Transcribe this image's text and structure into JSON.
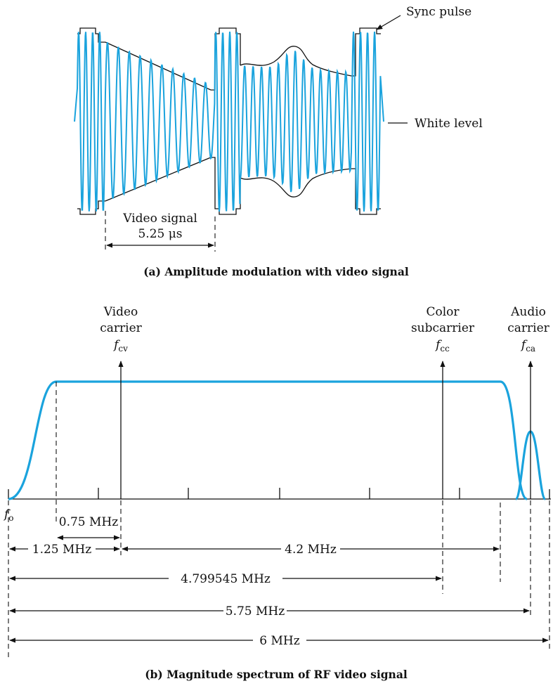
{
  "part_a": {
    "sync_pulse_label": "Sync pulse",
    "white_level_label": "White level",
    "video_signal_label": "Video signal",
    "duration_label": "5.25 μs",
    "caption": "(a) Amplitude modulation with video signal"
  },
  "part_b": {
    "video_carrier": {
      "line1": "Video",
      "line2": "carrier",
      "sym": "f",
      "sub": "cv"
    },
    "color_subcarrier": {
      "line1": "Color",
      "line2": "subcarrier",
      "sym": "f",
      "sub": "cc"
    },
    "audio_carrier": {
      "line1": "Audio",
      "line2": "carrier",
      "sym": "f",
      "sub": "ca"
    },
    "origin": {
      "sym": "f",
      "sub": "o"
    },
    "dims": {
      "d075": "0.75 MHz",
      "d125": "1.25 MHz",
      "d42": "4.2 MHz",
      "d4799": "4.799545 MHz",
      "d575": "5.75 MHz",
      "d6": "6 MHz"
    },
    "caption": "(b) Magnitude spectrum of RF video signal"
  },
  "colors": {
    "signal": "#1aa3dd",
    "ink": "#111111"
  }
}
